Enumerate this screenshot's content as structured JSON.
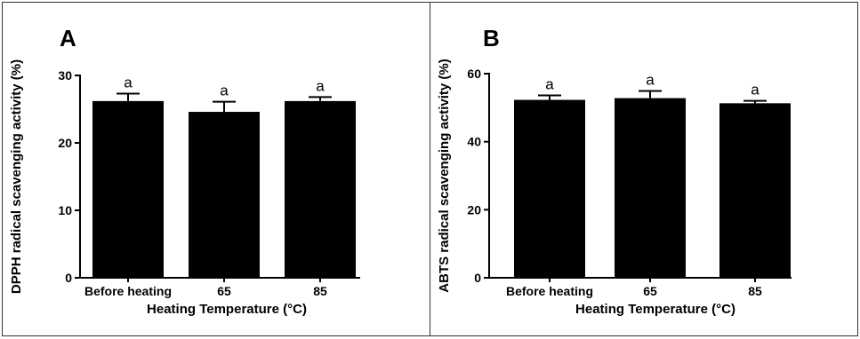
{
  "chart_data": [
    {
      "type": "bar",
      "panel_label": "A",
      "categories": [
        "Before heating",
        "65",
        "85"
      ],
      "values": [
        26.2,
        24.6,
        26.2
      ],
      "errors": [
        1.1,
        1.5,
        0.6
      ],
      "significance": [
        "a",
        "a",
        "a"
      ],
      "xlabel": "Heating Temperature (°C)",
      "ylabel": "DPPH radical scavenging activity (%)",
      "ylim": [
        0,
        30
      ],
      "yticks": [
        "0",
        "10",
        "20",
        "30"
      ],
      "bar_color": "#000000"
    },
    {
      "type": "bar",
      "panel_label": "B",
      "categories": [
        "Before heating",
        "65",
        "85"
      ],
      "values": [
        52.3,
        52.8,
        51.3
      ],
      "errors": [
        1.3,
        2.1,
        0.7
      ],
      "significance": [
        "a",
        "a",
        "a"
      ],
      "xlabel": "Heating Temperature (°C)",
      "ylabel": "ABTS radical scavenging activity (%)",
      "ylim": [
        0,
        60
      ],
      "yticks": [
        "0",
        "20",
        "40",
        "60"
      ],
      "bar_color": "#000000"
    }
  ]
}
